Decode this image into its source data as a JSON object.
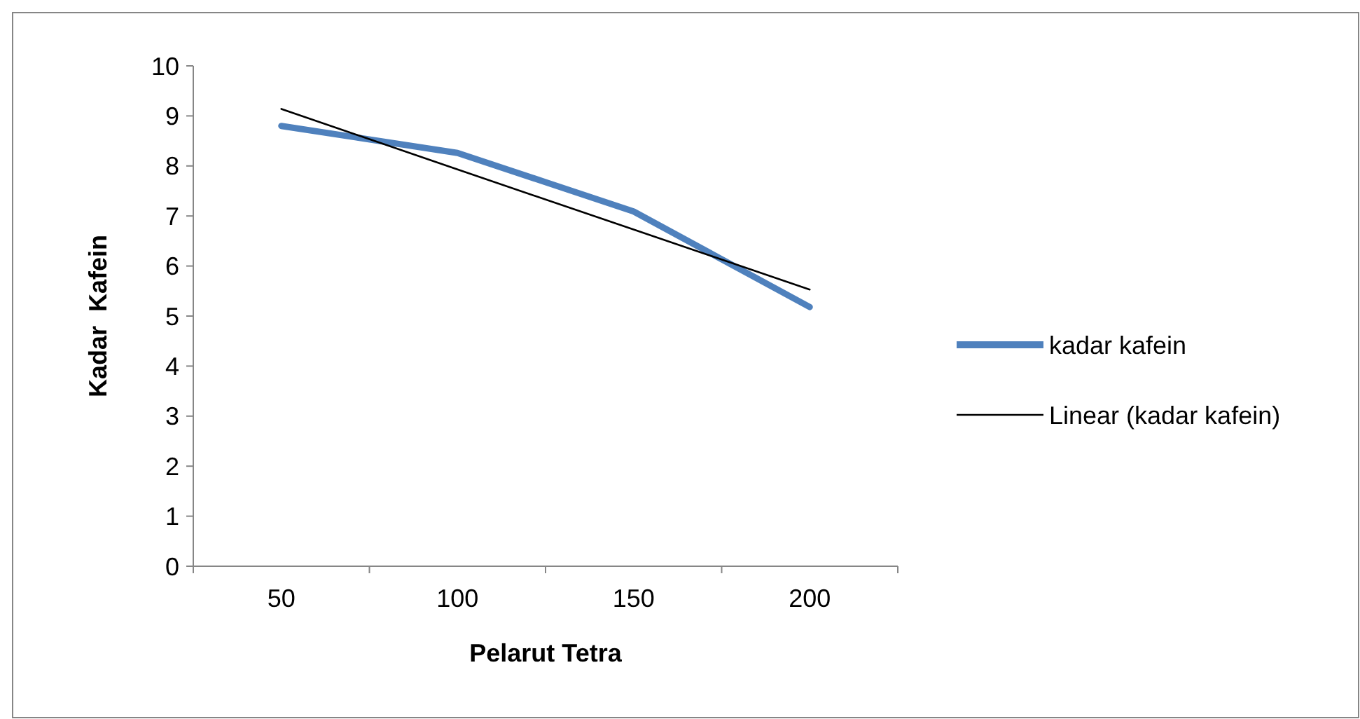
{
  "chart_data": {
    "type": "line",
    "xlabel": "Pelarut Tetra",
    "ylabel": "Kadar  Kafein",
    "categories": [
      "50",
      "100",
      "150",
      "200"
    ],
    "series": [
      {
        "name": "kadar kafein",
        "color": "#4f81bd",
        "values": [
          8.8,
          8.26,
          7.09,
          5.18
        ]
      },
      {
        "name": "Linear (kadar kafein)",
        "color": "#000000",
        "values": [
          9.14,
          7.93,
          6.73,
          5.53
        ]
      }
    ],
    "ylim": [
      0,
      10
    ],
    "yticks": [
      0,
      1,
      2,
      3,
      4,
      5,
      6,
      7,
      8,
      9,
      10
    ],
    "grid": false,
    "legend": "right",
    "marker": "none",
    "line_style": "solid"
  }
}
